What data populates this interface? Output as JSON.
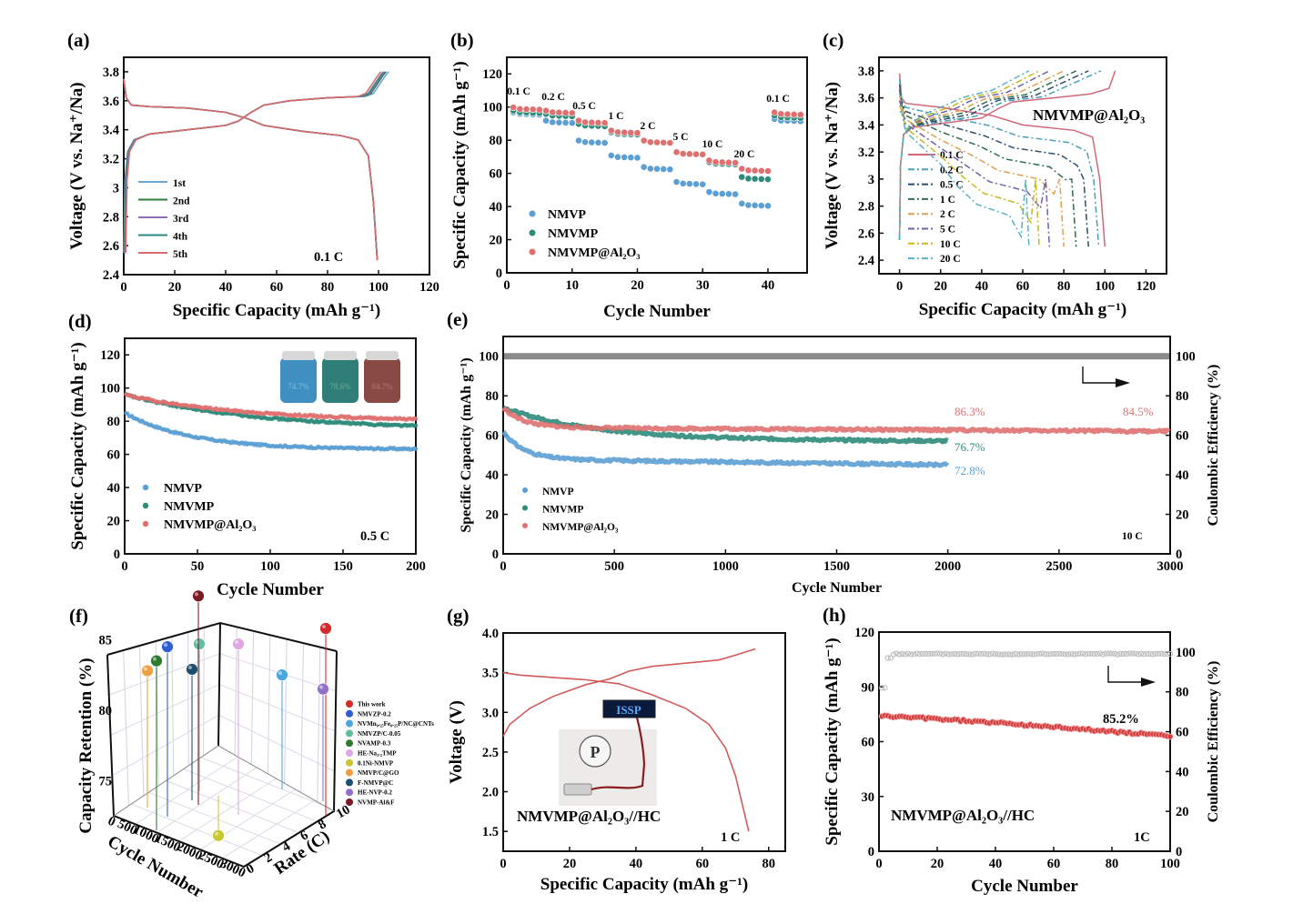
{
  "figure": {
    "panels": [
      "(a)",
      "(b)",
      "(c)",
      "(d)",
      "(e)",
      "(f)",
      "(g)",
      "(h)"
    ]
  },
  "colors": {
    "nmvp": "#5b9fd4",
    "nmvmp": "#2e8b7a",
    "nmvmp_al2o3": "#e07070",
    "ce_gray": "#8a8a8a",
    "cycle1": "#6aa8d8",
    "cycle2": "#2f7d3c",
    "cycle3": "#8c6fb8",
    "cycle4": "#2a8a8a",
    "cycle5": "#d86a6a"
  },
  "chart_data": [
    {
      "id": "a",
      "type": "line",
      "panel_label": "(a)",
      "xlabel": "Specific Capacity (mAh g⁻¹)",
      "ylabel": "Voltage (V vs. Na⁺/Na)",
      "xlim": [
        0,
        120
      ],
      "ylim": [
        2.4,
        3.9
      ],
      "xticks": [
        0,
        20,
        40,
        60,
        80,
        100,
        120
      ],
      "yticks": [
        2.4,
        2.6,
        2.8,
        3.0,
        3.2,
        3.4,
        3.6,
        3.8
      ],
      "annotation": "0.1 C",
      "legend": [
        "1st",
        "2nd",
        "3rd",
        "4th",
        "5th"
      ],
      "charge_end_capacity": [
        104,
        103,
        102.5,
        102,
        101
      ],
      "charge_profile": [
        [
          0,
          2.55
        ],
        [
          0.5,
          3.05
        ],
        [
          1.5,
          3.25
        ],
        [
          4,
          3.33
        ],
        [
          10,
          3.37
        ],
        [
          20,
          3.39
        ],
        [
          30,
          3.41
        ],
        [
          40,
          3.43
        ],
        [
          45,
          3.46
        ],
        [
          50,
          3.52
        ],
        [
          55,
          3.57
        ],
        [
          65,
          3.6
        ],
        [
          80,
          3.62
        ],
        [
          92,
          3.63
        ],
        [
          95,
          3.65
        ],
        [
          100,
          3.78
        ],
        [
          101,
          3.8
        ]
      ],
      "discharge_profile": [
        [
          0,
          3.75
        ],
        [
          1,
          3.62
        ],
        [
          3,
          3.57
        ],
        [
          10,
          3.56
        ],
        [
          25,
          3.55
        ],
        [
          40,
          3.52
        ],
        [
          48,
          3.48
        ],
        [
          55,
          3.43
        ],
        [
          70,
          3.39
        ],
        [
          85,
          3.36
        ],
        [
          92,
          3.33
        ],
        [
          96,
          3.22
        ],
        [
          98,
          2.9
        ],
        [
          99.5,
          2.5
        ]
      ]
    },
    {
      "id": "b",
      "type": "scatter",
      "panel_label": "(b)",
      "xlabel": "Cycle Number",
      "ylabel": "Specific Capacity (mAh g⁻¹)",
      "xlim": [
        0,
        46
      ],
      "ylim": [
        0,
        130
      ],
      "xticks": [
        0,
        10,
        20,
        30,
        40
      ],
      "yticks": [
        0,
        20,
        40,
        60,
        80,
        100,
        120
      ],
      "rate_labels": [
        "0.1 C",
        "0.2 C",
        "0.5 C",
        "1 C",
        "2 C",
        "5 C",
        "10 C",
        "20 C",
        "0.1 C"
      ],
      "series": [
        {
          "name": "NMVP",
          "color_key": "nmvp",
          "segment_values": [
            96,
            91,
            79,
            70,
            63,
            54,
            48,
            41,
            92
          ]
        },
        {
          "name": "NMVMP",
          "color_key": "nmvmp",
          "segment_values": [
            97,
            95,
            89,
            84,
            79,
            72,
            66,
            57,
            94
          ]
        },
        {
          "name": "NMVMP@Al₂O₃",
          "color_key": "nmvmp_al2o3",
          "segment_values": [
            99,
            97,
            91,
            85,
            79,
            72,
            67,
            62,
            96
          ]
        }
      ]
    },
    {
      "id": "c",
      "type": "line",
      "panel_label": "(c)",
      "xlabel": "Specific Capacity (mAh g⁻¹)",
      "ylabel": "Voltage (V vs. Na⁺/Na)",
      "xlim": [
        -10,
        130
      ],
      "ylim": [
        2.3,
        3.9
      ],
      "xticks": [
        0,
        20,
        40,
        60,
        80,
        100,
        120
      ],
      "yticks": [
        2.4,
        2.6,
        2.8,
        3.0,
        3.2,
        3.4,
        3.6,
        3.8
      ],
      "annotation": "NMVMP@Al₂O₃",
      "series": [
        {
          "name": "0.1 C",
          "color": "#d06878",
          "dash": "solid",
          "charge_end": 105,
          "discharge_end": 100
        },
        {
          "name": "0.2 C",
          "color": "#4aa0b8",
          "dash": "dashdot",
          "charge_end": 98,
          "discharge_end": 97
        },
        {
          "name": "0.5 C",
          "color": "#2c4e6e",
          "dash": "dashdot",
          "charge_end": 92,
          "discharge_end": 92
        },
        {
          "name": "1 C",
          "color": "#2e6e4e",
          "dash": "dashdot",
          "charge_end": 86,
          "discharge_end": 86
        },
        {
          "name": "2 C",
          "color": "#e0a050",
          "dash": "dashdot",
          "charge_end": 80,
          "discharge_end": 80
        },
        {
          "name": "5 C",
          "color": "#7060a8",
          "dash": "dashdot",
          "charge_end": 73,
          "discharge_end": 73
        },
        {
          "name": "10 C",
          "color": "#c8b820",
          "dash": "dashdot",
          "charge_end": 68,
          "discharge_end": 68
        },
        {
          "name": "20 C",
          "color": "#58b0c8",
          "dash": "dashdot",
          "charge_end": 63,
          "discharge_end": 63
        }
      ]
    },
    {
      "id": "d",
      "type": "scatter",
      "panel_label": "(d)",
      "xlabel": "Cycle Number",
      "ylabel": "Specific Capacity (mAh g⁻¹)",
      "xlim": [
        0,
        200
      ],
      "ylim": [
        0,
        130
      ],
      "xticks": [
        0,
        50,
        100,
        150,
        200
      ],
      "yticks": [
        0,
        20,
        40,
        60,
        80,
        100,
        120
      ],
      "annotation": "0.5 C",
      "inset_labels": [
        "74.7%",
        "78.6%",
        "84.7%"
      ],
      "series": [
        {
          "name": "NMVP",
          "color_key": "nmvp",
          "start": 85,
          "end": 63,
          "tau": 45
        },
        {
          "name": "NMVMP",
          "color_key": "nmvmp",
          "start": 96,
          "end": 75,
          "tau": 90
        },
        {
          "name": "NMVMP@Al₂O₃",
          "color_key": "nmvmp_al2o3",
          "start": 96,
          "end": 80,
          "tau": 80
        }
      ]
    },
    {
      "id": "e",
      "type": "scatter",
      "panel_label": "(e)",
      "xlabel": "Cycle Number",
      "ylabel": "Specific Capacity (mAh g⁻¹)",
      "ylabel_right": "Coulombic Efficiency (%)",
      "xlim": [
        0,
        3000
      ],
      "ylim": [
        0,
        110
      ],
      "ylim_right": [
        0,
        110
      ],
      "xticks": [
        0,
        500,
        1000,
        1500,
        2000,
        2500,
        3000
      ],
      "yticks": [
        0,
        20,
        40,
        60,
        80,
        100
      ],
      "yticks_right": [
        0,
        20,
        40,
        60,
        80,
        100
      ],
      "annotation": "10 C",
      "coulombic_efficiency": 100,
      "series": [
        {
          "name": "NMVP",
          "color_key": "nmvp",
          "start": 62,
          "plateau": 48,
          "end_cycle": 2000,
          "end_value": 45,
          "label": "72.8%"
        },
        {
          "name": "NMVMP",
          "color_key": "nmvmp",
          "start": 74,
          "plateau": 58,
          "end_cycle": 2000,
          "end_value": 57,
          "label": "76.7%"
        },
        {
          "name": "NMVMP@Al₂O₃",
          "color_key": "nmvmp_al2o3",
          "start": 74,
          "plateau": 64,
          "end_cycle": 3000,
          "end_value": 62,
          "label": "84.5%",
          "label_mid": "86.3%"
        }
      ]
    },
    {
      "id": "f",
      "type": "scatter",
      "panel_label": "(f)",
      "xlabel": "Cycle Number",
      "ylabel": "Capacity Retention (%)",
      "zlabel": "Rate (C)",
      "cycle_ticks": [
        0,
        500,
        1000,
        1500,
        2000,
        2500,
        3000
      ],
      "rate_ticks": [
        0,
        2,
        4,
        6,
        8,
        10
      ],
      "retention_ticks": [
        75,
        80,
        85
      ],
      "points": [
        {
          "name": "This work",
          "color": "#d42a2a",
          "retention": 84.5
        },
        {
          "name": "NMVZP-0.2",
          "color": "#2e5fd0",
          "retention": 83.2
        },
        {
          "name": "NVMn₀.₂₅Fe₀.₂₅P/NC@CNTs",
          "color": "#4aa6e0",
          "retention": 81.2
        },
        {
          "name": "NMVZP/C-0.05",
          "color": "#5cbfa0",
          "retention": 83.4
        },
        {
          "name": "NVAMP-0.3",
          "color": "#2e7a2e",
          "retention": 82.2
        },
        {
          "name": "HE-Na₃.₂TMP",
          "color": "#e0a8e0",
          "retention": 83.4
        },
        {
          "name": "0.1Ni-NMVP",
          "color": "#c8c830",
          "retention": 74.0
        },
        {
          "name": "NMVP/C@GO",
          "color": "#f0a040",
          "retention": 81.5
        },
        {
          "name": "F-NMVP@C",
          "color": "#1e4e6e",
          "retention": 81.6
        },
        {
          "name": "HE-NVP-0.2",
          "color": "#9070c8",
          "retention": 80.2
        },
        {
          "name": "NVMP-Al&F",
          "color": "#7a1a22",
          "retention": 86.8
        }
      ]
    },
    {
      "id": "g",
      "type": "line",
      "panel_label": "(g)",
      "xlabel": "Specific Capacity (mAh g⁻¹)",
      "ylabel": "Voltage (V)",
      "xlim": [
        0,
        85
      ],
      "ylim": [
        1.25,
        4.0
      ],
      "xticks": [
        0,
        20,
        40,
        60,
        80
      ],
      "yticks": [
        1.5,
        2.0,
        2.5,
        3.0,
        3.5,
        4.0
      ],
      "annotation": "1 C",
      "cell_label": "NMVMP@Al₂O₃//HC",
      "inset_text": "ISSP",
      "charge": [
        [
          0,
          2.7
        ],
        [
          2,
          2.85
        ],
        [
          8,
          3.05
        ],
        [
          15,
          3.2
        ],
        [
          25,
          3.35
        ],
        [
          32,
          3.42
        ],
        [
          38,
          3.52
        ],
        [
          45,
          3.58
        ],
        [
          55,
          3.62
        ],
        [
          65,
          3.66
        ],
        [
          70,
          3.72
        ],
        [
          76,
          3.8
        ]
      ],
      "discharge": [
        [
          0,
          3.5
        ],
        [
          5,
          3.47
        ],
        [
          15,
          3.44
        ],
        [
          25,
          3.41
        ],
        [
          35,
          3.36
        ],
        [
          45,
          3.22
        ],
        [
          55,
          3.05
        ],
        [
          62,
          2.85
        ],
        [
          67,
          2.55
        ],
        [
          70,
          2.2
        ],
        [
          72,
          1.85
        ],
        [
          74,
          1.5
        ]
      ]
    },
    {
      "id": "h",
      "type": "scatter",
      "panel_label": "(h)",
      "xlabel": "Cycle Number",
      "ylabel": "Specific Capacity (mAh g⁻¹)",
      "ylabel_right": "Coulombic Efficiency (%)",
      "xlim": [
        0,
        100
      ],
      "ylim": [
        0,
        120
      ],
      "ylim_right": [
        0,
        110
      ],
      "xticks": [
        0,
        20,
        40,
        60,
        80,
        100
      ],
      "yticks": [
        0,
        30,
        60,
        90,
        120
      ],
      "yticks_right": [
        0,
        20,
        40,
        60,
        80,
        100
      ],
      "annotation": "1C",
      "retention_label": "85.2%",
      "cell_label": "NMVMP@Al₂O₃//HC",
      "capacity_start": 74,
      "capacity_end": 63,
      "ce_value": 99
    }
  ]
}
